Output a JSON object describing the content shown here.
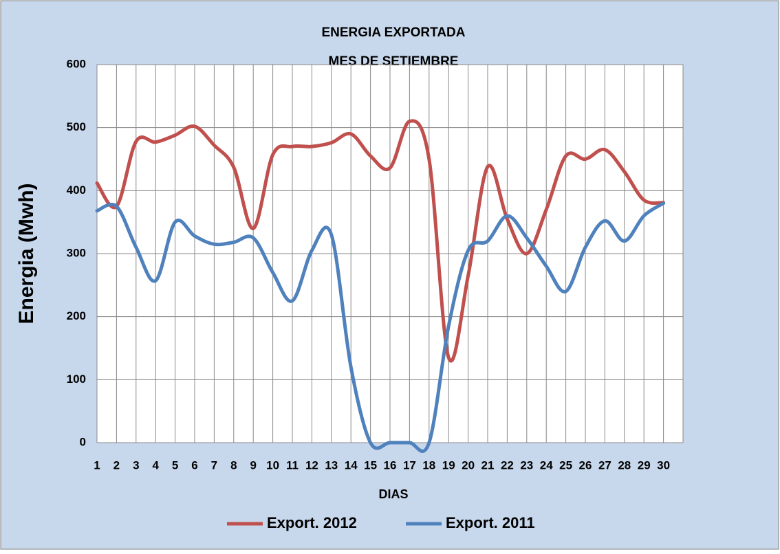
{
  "chart_data": {
    "type": "line",
    "title": "ENERGIA EXPORTADA",
    "subtitle": "MES DE SETIEMBRE",
    "x_label": "DIAS",
    "y_label": "Energia (Mwh)",
    "categories": [
      "1",
      "2",
      "3",
      "4",
      "5",
      "6",
      "7",
      "8",
      "9",
      "10",
      "11",
      "12",
      "13",
      "14",
      "15",
      "16",
      "17",
      "18",
      "19",
      "20",
      "21",
      "22",
      "23",
      "24",
      "25",
      "26",
      "27",
      "28",
      "29",
      "30"
    ],
    "series": [
      {
        "name": "Export. 2012",
        "color": "#c0504d",
        "values": [
          412,
          375,
          478,
          477,
          488,
          502,
          472,
          437,
          340,
          457,
          470,
          470,
          476,
          490,
          455,
          436,
          510,
          450,
          135,
          265,
          438,
          355,
          300,
          370,
          455,
          450,
          465,
          430,
          385,
          381
        ]
      },
      {
        "name": "Export. 2011",
        "color": "#4f81bd",
        "values": [
          368,
          375,
          310,
          257,
          350,
          328,
          315,
          318,
          325,
          270,
          225,
          305,
          330,
          120,
          0,
          0,
          0,
          0,
          185,
          305,
          320,
          360,
          325,
          280,
          240,
          310,
          352,
          320,
          360,
          380
        ]
      }
    ],
    "ylim": [
      0,
      600
    ],
    "yticks": [
      0,
      100,
      200,
      300,
      400,
      500,
      600
    ],
    "grid": true,
    "smooth": true,
    "legend": "bottom"
  }
}
